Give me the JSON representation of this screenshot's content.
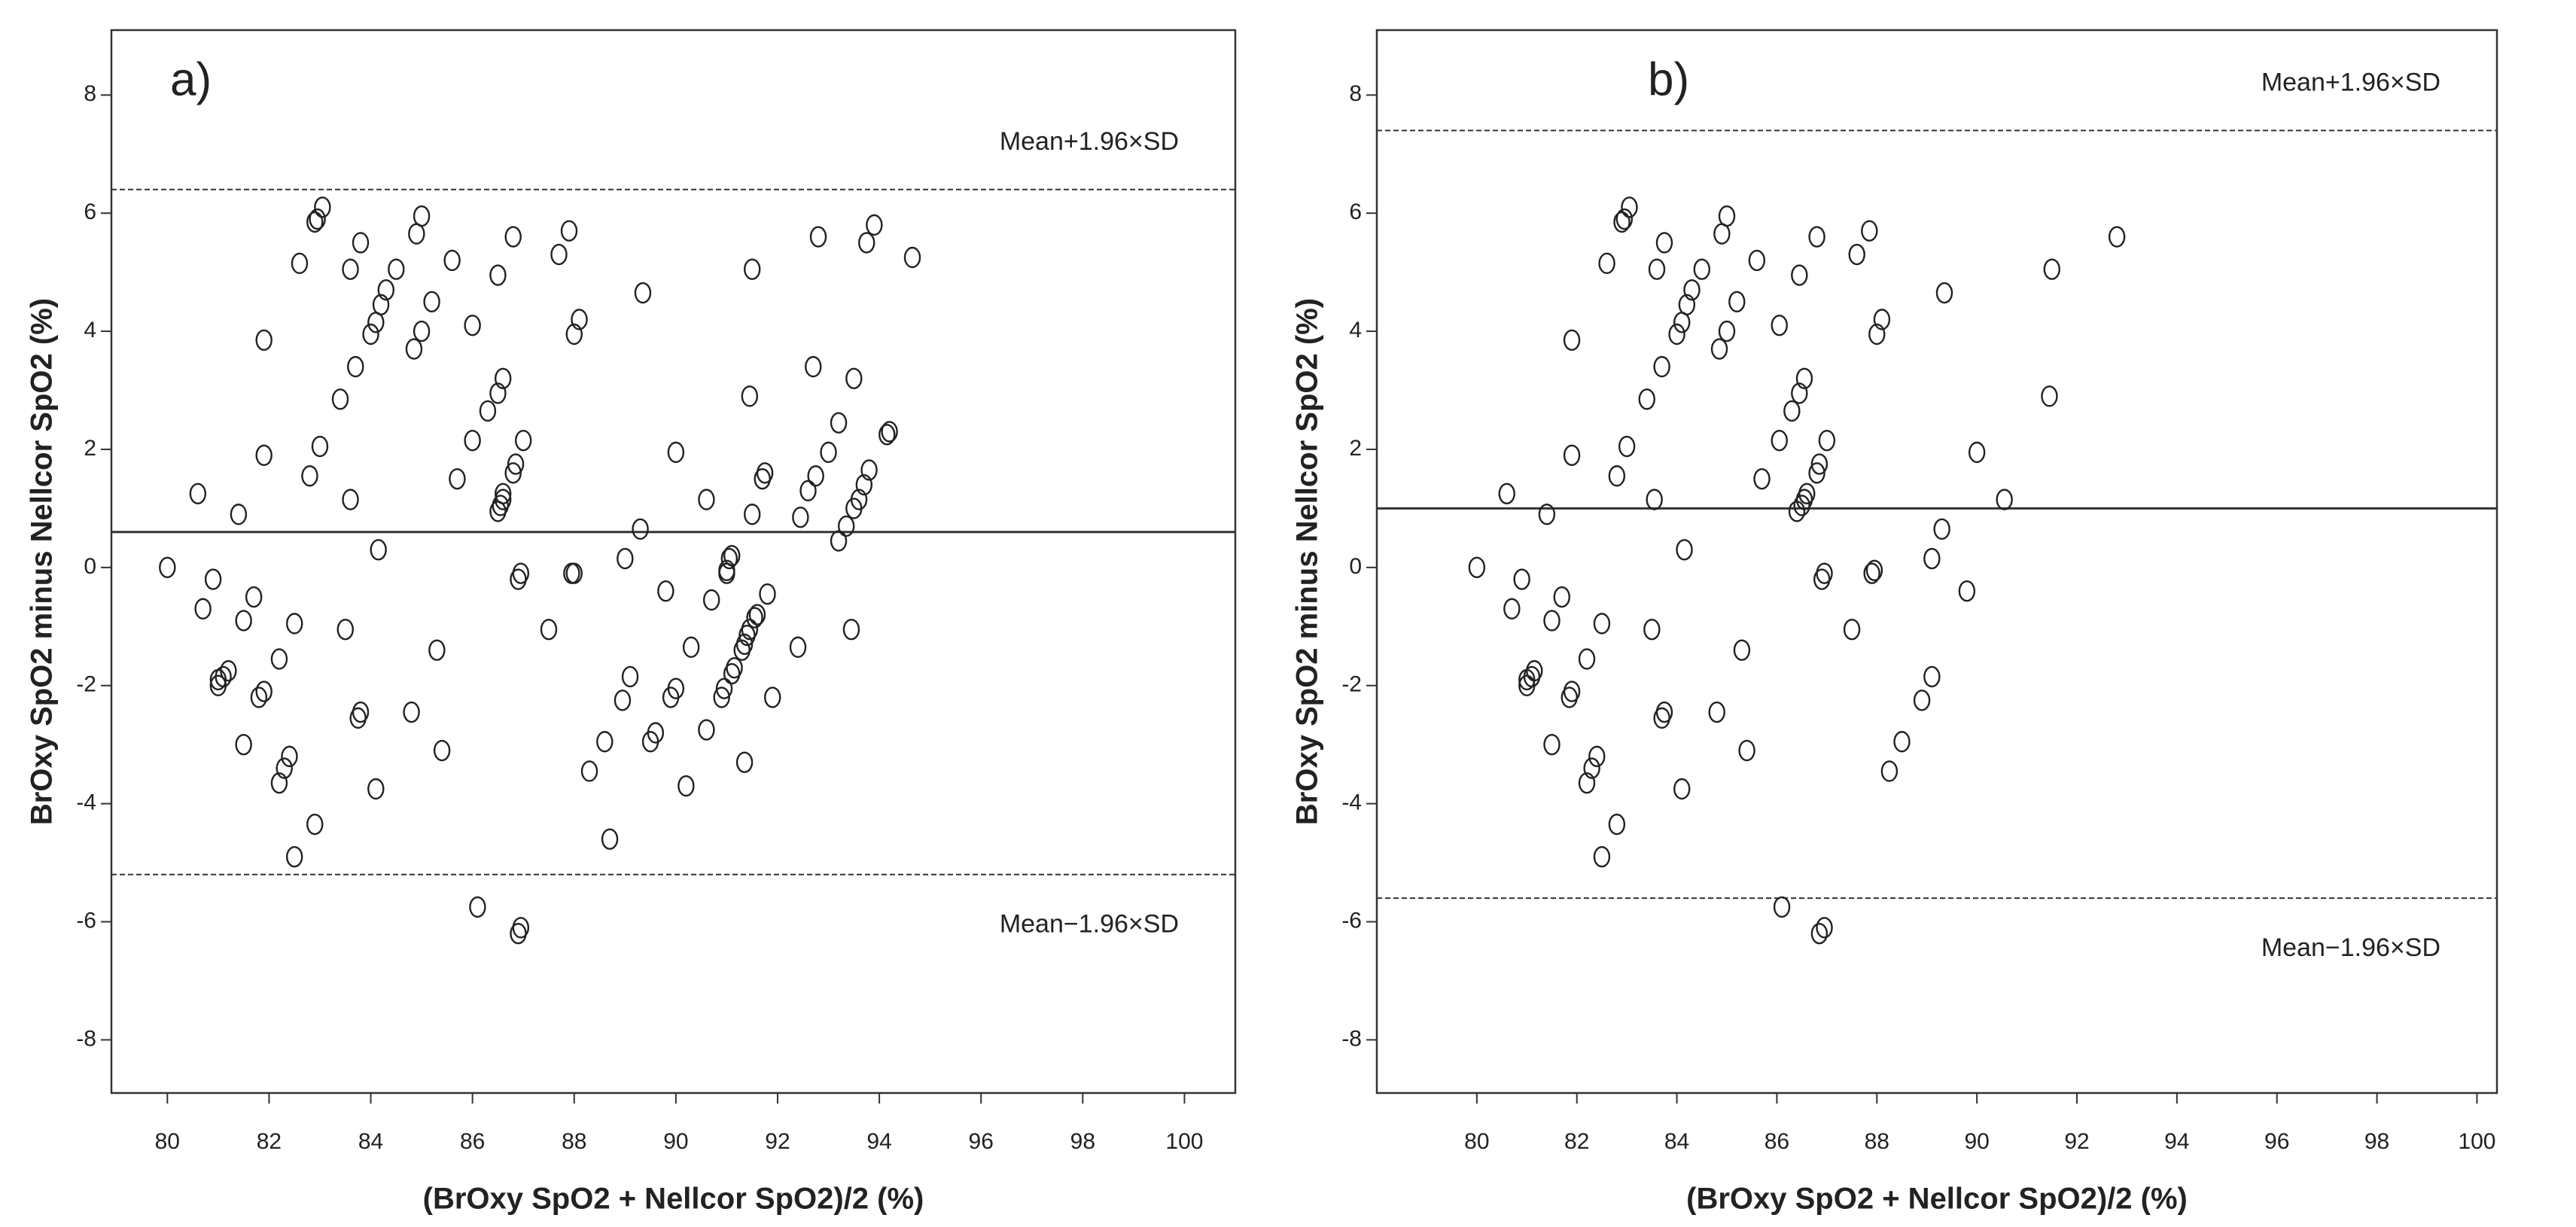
{
  "chart_data": [
    {
      "type": "scatter",
      "title": "a)",
      "xlabel": "(BrOxy SpO2 + Nellcor SpO2)/2 (%)",
      "ylabel": "BrOxy SpO2 minus Nellcor SpO2 (%)",
      "xlim": [
        78.9,
        101
      ],
      "ylim": [
        -8.9,
        9.1
      ],
      "xticks": [
        80,
        82,
        84,
        86,
        88,
        90,
        92,
        94,
        96,
        98,
        100
      ],
      "yticks": [
        8,
        6,
        4,
        2,
        0,
        -2,
        -4,
        -6,
        -8
      ],
      "reference_lines": [
        {
          "value": 6.4,
          "label": "Mean+1.96×SD",
          "style": "dashed"
        },
        {
          "value": 0.6,
          "style": "solid"
        },
        {
          "value": -5.2,
          "label": "Mean−1.96×SD",
          "style": "dashed"
        }
      ],
      "x": [
        80.0,
        80.6,
        80.7,
        80.9,
        81.0,
        81.0,
        81.1,
        81.2,
        81.4,
        81.5,
        81.5,
        81.7,
        81.8,
        81.9,
        81.9,
        81.9,
        82.2,
        82.2,
        82.3,
        82.4,
        82.5,
        82.5,
        82.6,
        82.8,
        82.9,
        83.0,
        82.9,
        82.95,
        83.05,
        83.4,
        83.5,
        83.6,
        83.6,
        83.7,
        83.75,
        83.8,
        83.8,
        84.0,
        84.1,
        84.1,
        84.15,
        84.2,
        84.3,
        84.5,
        84.8,
        84.85,
        84.9,
        85.0,
        85.0,
        85.2,
        85.3,
        85.4,
        85.6,
        85.7,
        86.0,
        86.0,
        86.1,
        86.3,
        86.5,
        86.5,
        86.5,
        86.55,
        86.6,
        86.6,
        86.6,
        86.8,
        86.85,
        86.8,
        86.9,
        86.95,
        87.0,
        86.9,
        86.95,
        87.5,
        87.7,
        87.9,
        87.95,
        88.0,
        88.0,
        88.1,
        88.3,
        88.6,
        88.7,
        88.95,
        89.0,
        89.1,
        89.3,
        89.35,
        89.5,
        89.6,
        89.8,
        89.9,
        90.0,
        90.0,
        90.2,
        90.3,
        90.6,
        90.6,
        90.7,
        90.9,
        90.95,
        91.0,
        91.0,
        91.05,
        91.1,
        91.1,
        91.15,
        91.3,
        91.35,
        91.4,
        91.45,
        91.35,
        91.45,
        91.5,
        91.5,
        91.55,
        91.6,
        91.7,
        91.75,
        91.8,
        91.9,
        92.4,
        92.45,
        92.6,
        92.7,
        92.75,
        92.8,
        93.0,
        93.2,
        93.2,
        93.35,
        93.45,
        93.5,
        93.5,
        93.6,
        93.7,
        93.75,
        93.8,
        93.9,
        94.15,
        94.2,
        94.65
      ],
      "values": [
        0.0,
        1.25,
        -0.7,
        -0.2,
        -2.0,
        -1.9,
        -1.85,
        -1.75,
        0.9,
        -0.9,
        -3.0,
        -0.5,
        -2.2,
        -2.1,
        1.9,
        3.85,
        -1.55,
        -3.65,
        -3.4,
        -3.2,
        -0.95,
        -4.9,
        5.15,
        1.55,
        -4.35,
        2.05,
        5.85,
        5.9,
        6.1,
        2.85,
        -1.05,
        1.15,
        5.05,
        3.4,
        -2.55,
        -2.45,
        5.5,
        3.95,
        4.15,
        -3.75,
        0.3,
        4.45,
        4.7,
        5.05,
        -2.45,
        3.7,
        5.65,
        4.0,
        5.95,
        4.5,
        -1.4,
        -3.1,
        5.2,
        1.5,
        4.1,
        2.15,
        -5.75,
        2.65,
        2.95,
        4.95,
        0.95,
        1.05,
        1.15,
        3.2,
        1.25,
        1.6,
        1.75,
        5.6,
        -0.2,
        -0.1,
        2.15,
        -6.2,
        -6.1,
        -1.05,
        5.3,
        5.7,
        -0.1,
        -0.1,
        3.95,
        4.2,
        -3.45,
        -2.95,
        -4.6,
        -2.25,
        0.15,
        -1.85,
        0.65,
        4.65,
        -2.95,
        -2.8,
        -0.4,
        -2.2,
        -2.05,
        1.95,
        -3.7,
        -1.35,
        1.15,
        -2.75,
        -0.55,
        -2.2,
        -2.05,
        -0.1,
        -0.05,
        0.15,
        0.2,
        -1.8,
        -1.7,
        -1.4,
        -1.3,
        -1.15,
        -1.05,
        -3.3,
        2.9,
        0.9,
        5.05,
        -0.85,
        -0.8,
        1.5,
        1.6,
        -0.45,
        -2.2,
        -1.35,
        0.85,
        1.3,
        3.4,
        1.55,
        5.6,
        1.95,
        2.45,
        0.45,
        0.7,
        -1.05,
        1.0,
        3.2,
        1.15,
        1.4,
        5.5,
        1.65,
        5.8,
        2.25,
        2.3,
        5.25
      ]
    },
    {
      "type": "scatter",
      "title": "b)",
      "xlabel": "(BrOxy SpO2 + Nellcor SpO2)/2 (%)",
      "ylabel": "BrOxy SpO2 minus Nellcor SpO2 (%)",
      "xlim": [
        78.0,
        100.4
      ],
      "ylim": [
        -8.9,
        9.1
      ],
      "xticks": [
        80,
        82,
        84,
        86,
        88,
        90,
        92,
        94,
        96,
        98,
        100
      ],
      "yticks": [
        8,
        6,
        4,
        2,
        0,
        -2,
        -4,
        -6,
        -8
      ],
      "reference_lines": [
        {
          "value": 7.4,
          "label": "Mean+1.96×SD",
          "style": "dashed"
        },
        {
          "value": 1.0,
          "style": "solid"
        },
        {
          "value": -5.6,
          "label": "Mean−1.96×SD",
          "style": "dashed"
        }
      ],
      "x": [
        80.0,
        80.6,
        80.7,
        80.9,
        81.0,
        81.0,
        81.1,
        81.15,
        81.4,
        81.5,
        81.5,
        81.7,
        81.85,
        81.9,
        81.9,
        81.9,
        82.2,
        82.2,
        82.3,
        82.4,
        82.5,
        82.5,
        82.6,
        82.8,
        82.8,
        83.0,
        82.9,
        82.95,
        83.05,
        83.4,
        83.5,
        83.55,
        83.6,
        83.7,
        83.7,
        83.75,
        83.75,
        84.0,
        84.1,
        84.1,
        84.15,
        84.2,
        84.3,
        84.5,
        84.8,
        84.85,
        84.9,
        85.0,
        85.0,
        85.2,
        85.3,
        85.4,
        85.6,
        85.7,
        86.05,
        86.05,
        86.1,
        86.3,
        86.45,
        86.45,
        86.4,
        86.5,
        86.55,
        86.55,
        86.6,
        86.8,
        86.85,
        86.8,
        86.9,
        86.95,
        87.0,
        86.85,
        86.95,
        87.5,
        87.6,
        87.85,
        87.9,
        87.95,
        88.0,
        88.1,
        88.25,
        88.5,
        88.9,
        89.1,
        89.1,
        89.3,
        89.35,
        89.8,
        90.0,
        90.55,
        91.45,
        91.5,
        92.8
      ],
      "values": [
        0.0,
        1.25,
        -0.7,
        -0.2,
        -2.0,
        -1.9,
        -1.85,
        -1.75,
        0.9,
        -0.9,
        -3.0,
        -0.5,
        -2.2,
        -2.1,
        1.9,
        3.85,
        -1.55,
        -3.65,
        -3.4,
        -3.2,
        -0.95,
        -4.9,
        5.15,
        1.55,
        -4.35,
        2.05,
        5.85,
        5.9,
        6.1,
        2.85,
        -1.05,
        1.15,
        5.05,
        3.4,
        -2.55,
        -2.45,
        5.5,
        3.95,
        4.15,
        -3.75,
        0.3,
        4.45,
        4.7,
        5.05,
        -2.45,
        3.7,
        5.65,
        4.0,
        5.95,
        4.5,
        -1.4,
        -3.1,
        5.2,
        1.5,
        4.1,
        2.15,
        -5.75,
        2.65,
        2.95,
        4.95,
        0.95,
        1.05,
        1.15,
        3.2,
        1.25,
        1.6,
        1.75,
        5.6,
        -0.2,
        -0.1,
        2.15,
        -6.2,
        -6.1,
        -1.05,
        5.3,
        5.7,
        -0.1,
        -0.05,
        3.95,
        4.2,
        -3.45,
        -2.95,
        -2.25,
        0.15,
        -1.85,
        0.65,
        4.65,
        -0.4,
        1.95,
        1.15,
        2.9,
        5.05,
        5.6
      ]
    }
  ]
}
